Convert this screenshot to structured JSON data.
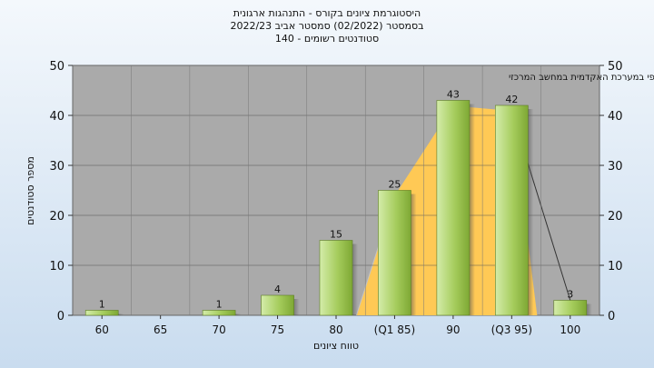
{
  "chart_data": {
    "type": "bar",
    "title": [
      "היסטוגרמת ציונים בקורס - התנהגות ארגונית",
      "בסמסטר  (02/2022)  סמסטר אביב 2022/23",
      "סטודנטים רשומים - 140"
    ],
    "annotation": "במשימה : ציון סופי במערכת האקדמית במחשב המרכזי",
    "xlabel": "טווח ציונים",
    "ylabel": "מספר סטודנטים",
    "categories": [
      "60",
      "65",
      "70",
      "75",
      "80",
      "(Q1 85)",
      "90",
      "(Q3 95)",
      "100"
    ],
    "values": [
      1,
      0,
      1,
      4,
      15,
      25,
      43,
      42,
      3
    ],
    "data_labels": [
      "1",
      "",
      "1",
      "4",
      "15",
      "25",
      "43",
      "42",
      "3"
    ],
    "yticks": [
      0,
      10,
      20,
      30,
      40,
      50
    ],
    "ylim": [
      0,
      50
    ],
    "grid": true,
    "right_axis": true,
    "iqr_band": {
      "from": "(Q1 85)",
      "to": "(Q3 95)"
    },
    "colors": {
      "plot_bg": "#aaaaaa",
      "bar_light": "#d4ecaa",
      "bar_dark": "#7ea834",
      "band": "#ffc955",
      "band_edge": "#c4c4c4"
    }
  }
}
